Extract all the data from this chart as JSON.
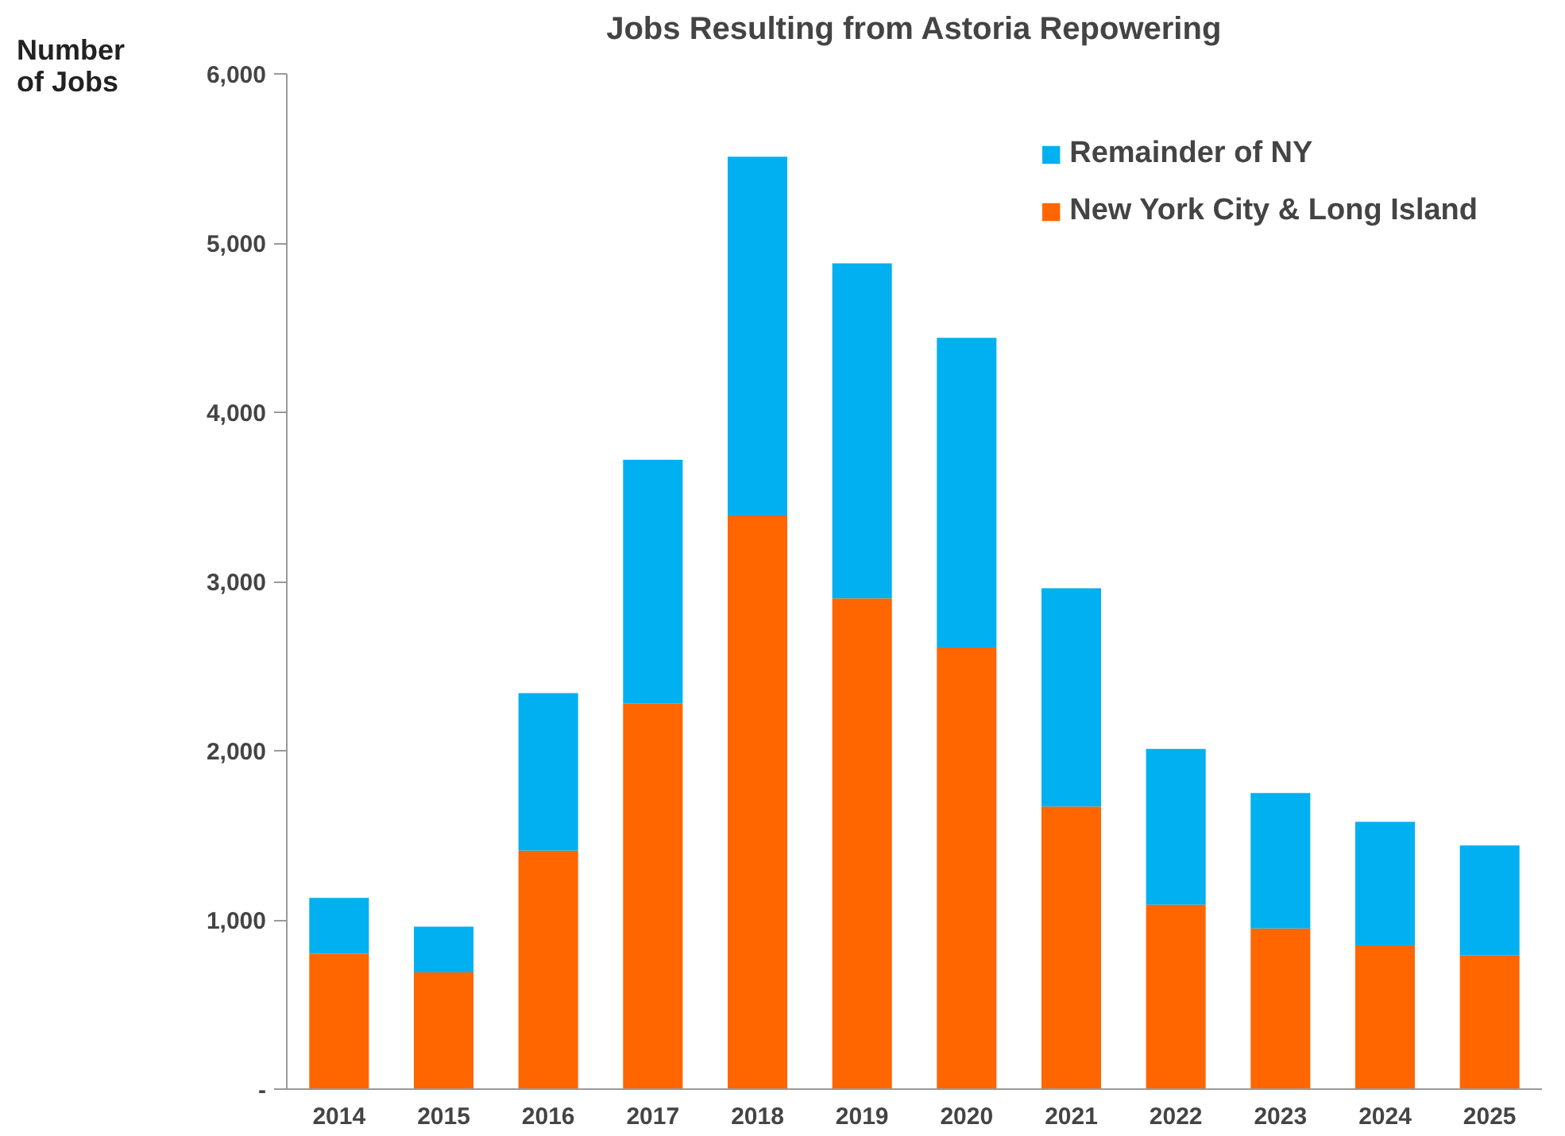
{
  "chart_data": {
    "type": "bar",
    "title": "Jobs Resulting from Astoria Repowering",
    "ylabel": "Number of Jobs",
    "categories": [
      "2014",
      "2015",
      "2016",
      "2017",
      "2018",
      "2019",
      "2020",
      "2021",
      "2022",
      "2023",
      "2024",
      "2025"
    ],
    "stacked": true,
    "series": [
      {
        "name": "New York City & Long Island",
        "color": "#ff6600",
        "values": [
          800,
          690,
          1410,
          2280,
          3390,
          2900,
          2610,
          1670,
          1090,
          950,
          850,
          790
        ]
      },
      {
        "name": "Remainder of NY",
        "color": "#00b0f0",
        "values": [
          330,
          270,
          930,
          1440,
          2120,
          1980,
          1830,
          1290,
          920,
          800,
          730,
          650
        ]
      }
    ],
    "ylim": [
      0,
      6000
    ],
    "yticks": [
      {
        "value": 0,
        "label": "-"
      },
      {
        "value": 1000,
        "label": "1,000"
      },
      {
        "value": 2000,
        "label": "2,000"
      },
      {
        "value": 3000,
        "label": "3,000"
      },
      {
        "value": 4000,
        "label": "4,000"
      },
      {
        "value": 5000,
        "label": "5,000"
      },
      {
        "value": 6000,
        "label": "6,000"
      }
    ],
    "grid": false,
    "legend": "top right"
  }
}
